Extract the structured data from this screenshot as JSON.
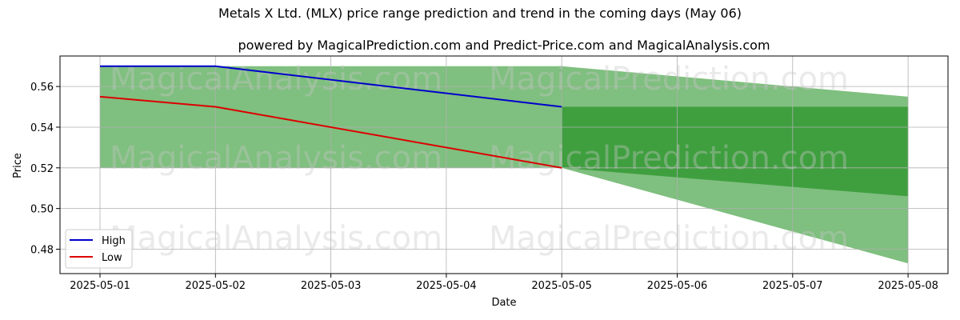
{
  "chart_data": {
    "type": "line",
    "title": "Metals X Ltd. (MLX) price range prediction and trend in the coming days (May 06)",
    "subtitle": "powered by MagicalPrediction.com and Predict-Price.com and MagicalAnalysis.com",
    "xlabel": "Date",
    "ylabel": "Price",
    "x": [
      "2025-05-01",
      "2025-05-02",
      "2025-05-03",
      "2025-05-04",
      "2025-05-05",
      "2025-05-06",
      "2025-05-07",
      "2025-05-08"
    ],
    "ylim": [
      0.468,
      0.575
    ],
    "yticks": [
      "0.48",
      "0.50",
      "0.52",
      "0.54",
      "0.56"
    ],
    "grid": true,
    "legend_position": "lower-left",
    "series": [
      {
        "name": "High",
        "color": "#0000cc",
        "x": [
          "2025-05-01",
          "2025-05-02",
          "2025-05-05"
        ],
        "values": [
          0.57,
          0.57,
          0.55
        ]
      },
      {
        "name": "Low",
        "color": "#dd0000",
        "x": [
          "2025-05-01",
          "2025-05-02",
          "2025-05-05"
        ],
        "values": [
          0.555,
          0.55,
          0.52
        ]
      }
    ],
    "historical_band": {
      "color": "#7fbf7f",
      "x": [
        "2025-05-01",
        "2025-05-05"
      ],
      "upper": [
        0.57,
        0.57
      ],
      "lower": [
        0.52,
        0.52
      ]
    },
    "prediction_outer_band": {
      "color": "#7fbf7f",
      "x": [
        "2025-05-05",
        "2025-05-08"
      ],
      "upper": [
        0.57,
        0.555
      ],
      "lower": [
        0.52,
        0.473
      ]
    },
    "prediction_inner_band": {
      "color": "#3f9f3f",
      "x": [
        "2025-05-05",
        "2025-05-08"
      ],
      "upper": [
        0.55,
        0.55
      ],
      "lower": [
        0.52,
        0.506
      ]
    },
    "watermarks": [
      "MagicalAnalysis.com",
      "MagicalPrediction.com"
    ]
  }
}
